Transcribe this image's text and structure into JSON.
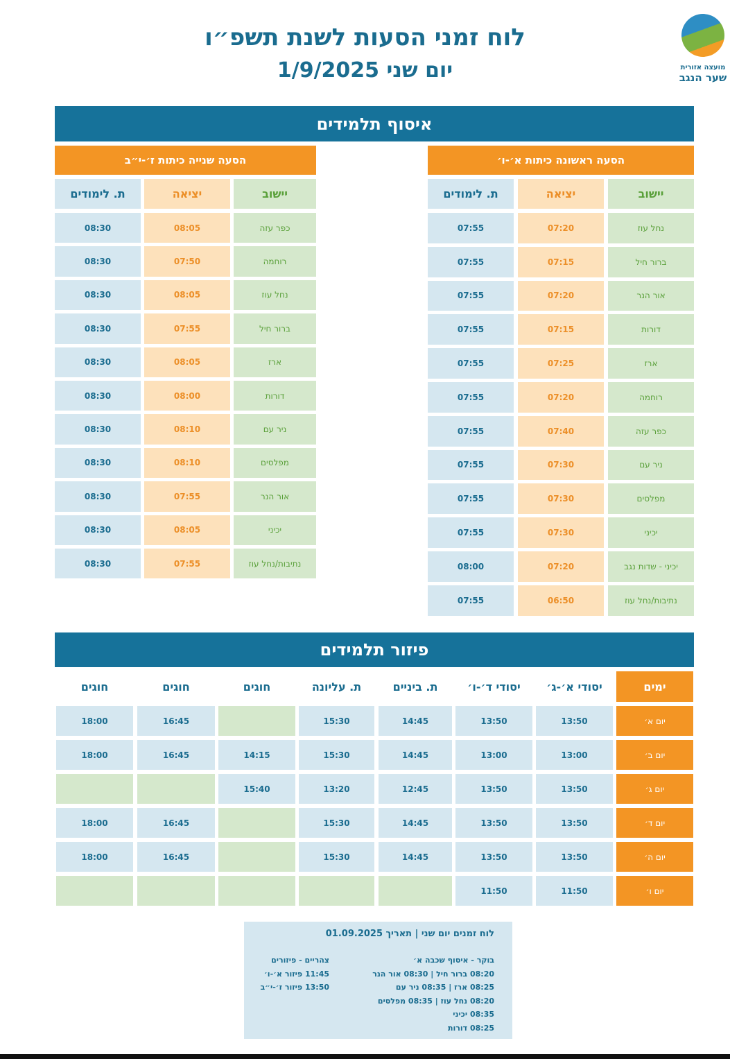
{
  "header": {
    "title": "לוח זמני הסעות לשנת תשפ״ו",
    "subtitle": "יום שני 1/9/2025",
    "logo_top": "מועצה אזורית",
    "logo_main": "שער הנגב"
  },
  "pickup": {
    "banner": "איסוף תלמידים",
    "first": {
      "title": "הסעה ראשונה כיתות א׳-ו׳",
      "headers": [
        "יישוב",
        "יציאה",
        "ת. לימודים"
      ],
      "rows": [
        [
          "נחל עוז",
          "07:20",
          "07:55"
        ],
        [
          "ברור חיל",
          "07:15",
          "07:55"
        ],
        [
          "אור הנר",
          "07:20",
          "07:55"
        ],
        [
          "דורות",
          "07:15",
          "07:55"
        ],
        [
          "ארז",
          "07:25",
          "07:55"
        ],
        [
          "רוחמה",
          "07:20",
          "07:55"
        ],
        [
          "כפר עזה",
          "07:40",
          "07:55"
        ],
        [
          "ניר עם",
          "07:30",
          "07:55"
        ],
        [
          "מפלסים",
          "07:30",
          "07:55"
        ],
        [
          "יכיני",
          "07:30",
          "07:55"
        ],
        [
          "יכיני - שדות נגב",
          "07:20",
          "08:00"
        ],
        [
          "נתיבות/נחל עוז",
          "06:50",
          "07:55"
        ]
      ]
    },
    "second": {
      "title": "הסעה שנייה כיתות ז׳-י״ב",
      "headers": [
        "יישוב",
        "יציאה",
        "ת. לימודים"
      ],
      "rows": [
        [
          "כפר עזה",
          "08:05",
          "08:30"
        ],
        [
          "רוחמה",
          "07:50",
          "08:30"
        ],
        [
          "נחל עוז",
          "08:05",
          "08:30"
        ],
        [
          "ברור חיל",
          "07:55",
          "08:30"
        ],
        [
          "ארז",
          "08:05",
          "08:30"
        ],
        [
          "דורות",
          "08:00",
          "08:30"
        ],
        [
          "ניר עם",
          "08:10",
          "08:30"
        ],
        [
          "מפלסים",
          "08:10",
          "08:30"
        ],
        [
          "אור הנר",
          "07:55",
          "08:30"
        ],
        [
          "יכיני",
          "08:05",
          "08:30"
        ],
        [
          "נתיבות/נחל עוז",
          "07:55",
          "08:30"
        ]
      ]
    }
  },
  "dispersal": {
    "banner": "פיזור תלמידים",
    "headers": [
      "ימים",
      "יסודי א׳-ג׳",
      "יסודי ד׳-ו׳",
      "ת. ביניים",
      "ת. עליונה",
      "חוגים",
      "חוגים",
      "חוגים"
    ],
    "rows": [
      [
        "יום א׳",
        "13:50",
        "13:50",
        "14:45",
        "15:30",
        "",
        "16:45",
        "18:00"
      ],
      [
        "יום ב׳",
        "13:00",
        "13:00",
        "14:45",
        "15:30",
        "14:15",
        "16:45",
        "18:00"
      ],
      [
        "יום ג׳",
        "13:50",
        "13:50",
        "12:45",
        "13:20",
        "15:40",
        "",
        ""
      ],
      [
        "יום ד׳",
        "13:50",
        "13:50",
        "14:45",
        "15:30",
        "",
        "16:45",
        "18:00"
      ],
      [
        "יום ה׳",
        "13:50",
        "13:50",
        "14:45",
        "15:30",
        "",
        "16:45",
        "18:00"
      ],
      [
        "יום ו׳",
        "11:50",
        "11:50",
        "",
        "",
        "",
        "",
        ""
      ]
    ]
  },
  "note": {
    "title": "לוח זמנים יום שני | תאריך 01.09.2025",
    "morning": [
      "בוקר - איסוף שכבה א׳",
      "08:20 ברור חיל | 08:30 אור הנר",
      "08:25 ארז | 08:35 ניר עם",
      "08:20 נחל עוז | 08:35 מפלסים",
      "08:35 יכיני",
      "08:25 דורות"
    ],
    "noon": [
      "צהריים - פיזורים",
      "11:45 פיזור א׳-ו׳",
      "13:50 פיזור ז׳-י״ב"
    ]
  },
  "colors": {
    "banner": "#16729a",
    "orange": "#f39524",
    "green_cell": "#d5e8cc",
    "orange_cell": "#fde1bb",
    "blue_cell": "#d5e7f0"
  }
}
